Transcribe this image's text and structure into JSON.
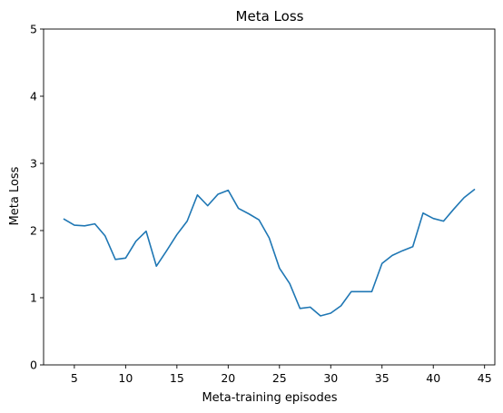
{
  "chart_data": {
    "type": "line",
    "title": "Meta Loss",
    "xlabel": "Meta-training episodes",
    "ylabel": "Meta Loss",
    "xlim": [
      2,
      46
    ],
    "ylim": [
      0,
      5
    ],
    "xticks": [
      5,
      10,
      15,
      20,
      25,
      30,
      35,
      40,
      45
    ],
    "yticks": [
      0,
      1,
      2,
      3,
      4,
      5
    ],
    "grid": false,
    "series": [
      {
        "color": "#1f77b4",
        "x": [
          4,
          5,
          6,
          7,
          8,
          9,
          10,
          11,
          12,
          13,
          14,
          15,
          16,
          17,
          18,
          19,
          20,
          21,
          22,
          23,
          24,
          25,
          26,
          27,
          28,
          29,
          30,
          31,
          32,
          33,
          34,
          35,
          36,
          37,
          38,
          39,
          40,
          41,
          42,
          43,
          44
        ],
        "y": [
          2.17,
          2.08,
          2.07,
          2.1,
          1.92,
          1.57,
          1.59,
          1.84,
          1.99,
          1.47,
          1.7,
          1.94,
          2.14,
          2.53,
          2.37,
          2.54,
          2.6,
          2.33,
          2.25,
          2.16,
          1.89,
          1.44,
          1.21,
          0.84,
          0.86,
          0.73,
          0.77,
          0.88,
          1.09,
          1.09,
          1.09,
          1.51,
          1.63,
          1.7,
          1.76,
          2.26,
          2.18,
          2.14,
          2.32,
          2.49,
          2.61
        ]
      }
    ]
  }
}
